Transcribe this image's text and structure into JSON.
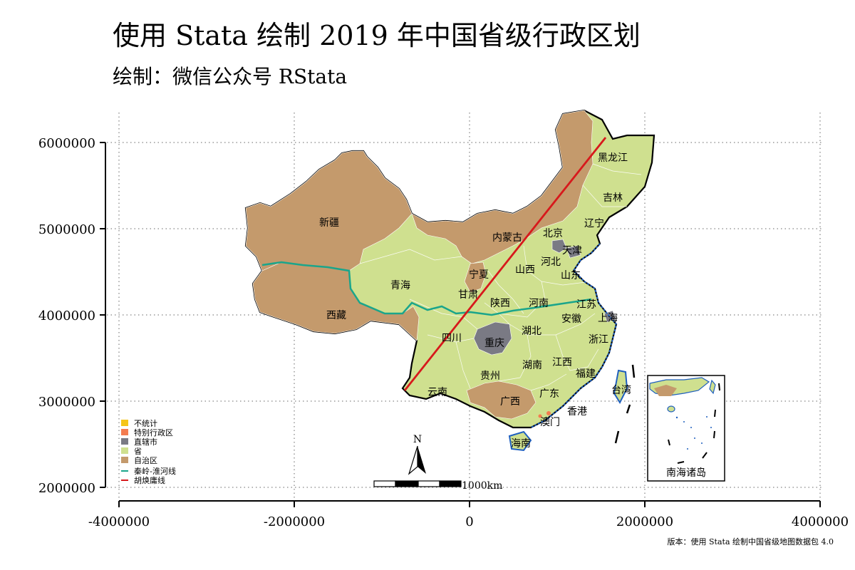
{
  "title": "使用 Stata 绘制 2019 年中国省级行政区划",
  "subtitle": "绘制：微信公众号 RStata",
  "version_note": "版本：使用 Stata 绘制中国省级地图数据包 4.0",
  "axes": {
    "x_ticks": [
      "-4000000",
      "-2000000",
      "0",
      "2000000",
      "4000000"
    ],
    "y_ticks": [
      "6000000",
      "5000000",
      "4000000",
      "3000000",
      "2000000"
    ]
  },
  "colors": {
    "province": "#cfe08f",
    "autonomous_region": "#c49a6c",
    "municipality": "#7a7a84",
    "special_region": "#f47c50",
    "not_counted": "#f5c518",
    "qinling_line": "#1aa58b",
    "hu_line": "#d7191c",
    "ocean_edge": "#1f5fbf"
  },
  "legend": [
    {
      "label": "不统计",
      "color": "#f5c518",
      "kind": "box"
    },
    {
      "label": "特别行政区",
      "color": "#f47c50",
      "kind": "box"
    },
    {
      "label": "直辖市",
      "color": "#7a7a84",
      "kind": "box"
    },
    {
      "label": "省",
      "color": "#cfe08f",
      "kind": "box"
    },
    {
      "label": "自治区",
      "color": "#c49a6c",
      "kind": "box"
    },
    {
      "label": "秦岭-淮河线",
      "color": "#1aa58b",
      "kind": "line"
    },
    {
      "label": "胡焕庸线",
      "color": "#d7191c",
      "kind": "line"
    }
  ],
  "provinces": [
    {
      "name": "黑龙江",
      "type": "province"
    },
    {
      "name": "吉林",
      "type": "province"
    },
    {
      "name": "辽宁",
      "type": "province"
    },
    {
      "name": "内蒙古",
      "type": "autonomous_region"
    },
    {
      "name": "北京",
      "type": "municipality"
    },
    {
      "name": "天津",
      "type": "municipality"
    },
    {
      "name": "河北",
      "type": "province"
    },
    {
      "name": "山西",
      "type": "province"
    },
    {
      "name": "山东",
      "type": "province"
    },
    {
      "name": "新疆",
      "type": "autonomous_region"
    },
    {
      "name": "宁夏",
      "type": "autonomous_region"
    },
    {
      "name": "青海",
      "type": "province"
    },
    {
      "name": "甘肃",
      "type": "province"
    },
    {
      "name": "陕西",
      "type": "province"
    },
    {
      "name": "河南",
      "type": "province"
    },
    {
      "name": "江苏",
      "type": "province"
    },
    {
      "name": "上海",
      "type": "municipality"
    },
    {
      "name": "安徽",
      "type": "province"
    },
    {
      "name": "西藏",
      "type": "autonomous_region"
    },
    {
      "name": "四川",
      "type": "province"
    },
    {
      "name": "湖北",
      "type": "province"
    },
    {
      "name": "浙江",
      "type": "province"
    },
    {
      "name": "重庆",
      "type": "municipality"
    },
    {
      "name": "江西",
      "type": "province"
    },
    {
      "name": "湖南",
      "type": "province"
    },
    {
      "name": "福建",
      "type": "province"
    },
    {
      "name": "贵州",
      "type": "province"
    },
    {
      "name": "台湾",
      "type": "province"
    },
    {
      "name": "云南",
      "type": "province"
    },
    {
      "name": "广西",
      "type": "autonomous_region"
    },
    {
      "name": "广东",
      "type": "province"
    },
    {
      "name": "香港",
      "type": "special_region"
    },
    {
      "name": "澳门",
      "type": "special_region"
    },
    {
      "name": "海南",
      "type": "province"
    }
  ],
  "inset_label": "南海诸岛",
  "scalebar": {
    "north": "N",
    "label": "1000km"
  }
}
